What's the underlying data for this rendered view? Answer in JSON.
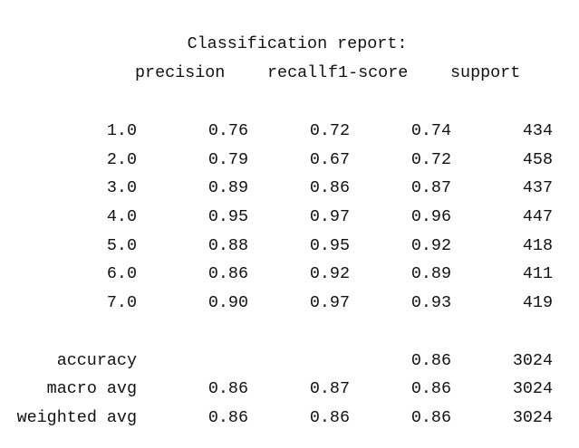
{
  "report": {
    "title": "Classification report:",
    "headers": {
      "precision": "precision",
      "recall": "recall",
      "f1": "f1-score",
      "support": "support"
    },
    "classes": [
      {
        "label": "1.0",
        "precision": "0.76",
        "recall": "0.72",
        "f1": "0.74",
        "support": "434"
      },
      {
        "label": "2.0",
        "precision": "0.79",
        "recall": "0.67",
        "f1": "0.72",
        "support": "458"
      },
      {
        "label": "3.0",
        "precision": "0.89",
        "recall": "0.86",
        "f1": "0.87",
        "support": "437"
      },
      {
        "label": "4.0",
        "precision": "0.95",
        "recall": "0.97",
        "f1": "0.96",
        "support": "447"
      },
      {
        "label": "5.0",
        "precision": "0.88",
        "recall": "0.95",
        "f1": "0.92",
        "support": "418"
      },
      {
        "label": "6.0",
        "precision": "0.86",
        "recall": "0.92",
        "f1": "0.89",
        "support": "411"
      },
      {
        "label": "7.0",
        "precision": "0.90",
        "recall": "0.97",
        "f1": "0.93",
        "support": "419"
      }
    ],
    "accuracy": {
      "label": "accuracy",
      "f1": "0.86",
      "support": "3024"
    },
    "macro_avg": {
      "label": "macro avg",
      "precision": "0.86",
      "recall": "0.87",
      "f1": "0.86",
      "support": "3024"
    },
    "weighted_avg": {
      "label": "weighted avg",
      "precision": "0.86",
      "recall": "0.86",
      "f1": "0.86",
      "support": "3024"
    }
  }
}
